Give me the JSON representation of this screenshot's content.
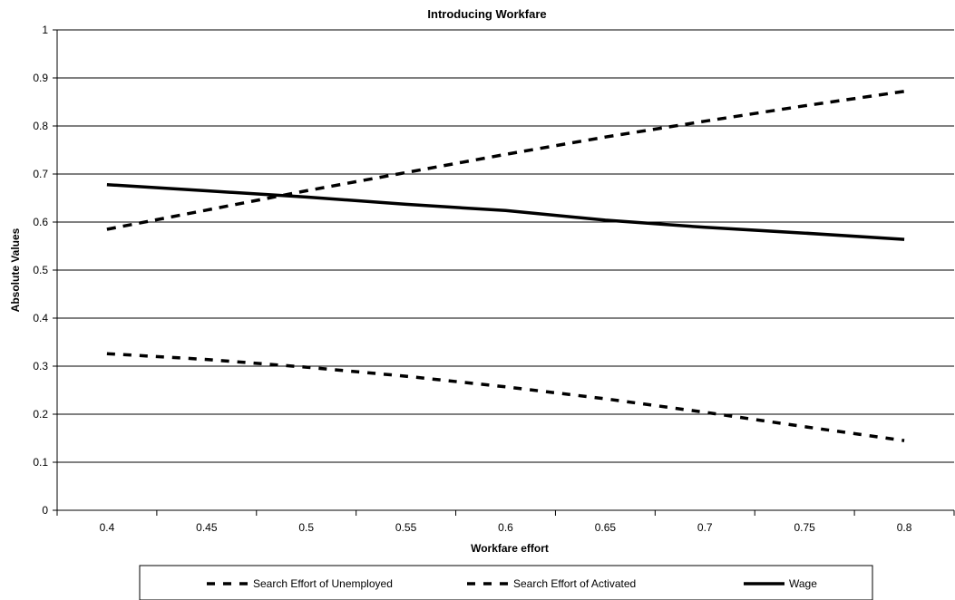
{
  "chart_data": {
    "type": "line",
    "title": "Introducing Workfare",
    "xlabel": "Workfare effort",
    "ylabel": "Absolute Values",
    "x": [
      0.4,
      0.45,
      0.5,
      0.55,
      0.6,
      0.65,
      0.7,
      0.75,
      0.8
    ],
    "x_ticks": [
      "0.4",
      "0.45",
      "0.5",
      "0.55",
      "0.6",
      "0.65",
      "0.7",
      "0.75",
      "0.8"
    ],
    "y_ticks": [
      "0",
      "0.1",
      "0.2",
      "0.3",
      "0.4",
      "0.5",
      "0.6",
      "0.7",
      "0.8",
      "0.9",
      "1"
    ],
    "ylim": [
      0,
      1
    ],
    "grid": "horizontal",
    "legend_position": "bottom",
    "series": [
      {
        "name": "Search Effort of Unemployed",
        "style": "dashed",
        "color": "#000000",
        "values": [
          0.326,
          0.314,
          0.298,
          0.279,
          0.257,
          0.232,
          0.204,
          0.174,
          0.145
        ]
      },
      {
        "name": "Search Effort of Activated",
        "style": "dashed",
        "color": "#000000",
        "values": [
          0.585,
          0.625,
          0.665,
          0.703,
          0.741,
          0.777,
          0.81,
          0.842,
          0.872
        ]
      },
      {
        "name": "Wage",
        "style": "solid",
        "color": "#000000",
        "values": [
          0.678,
          0.665,
          0.652,
          0.637,
          0.624,
          0.604,
          0.589,
          0.577,
          0.564
        ]
      }
    ]
  }
}
